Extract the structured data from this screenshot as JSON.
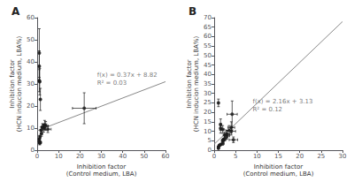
{
  "chart_data": [
    {
      "type": "scatter",
      "title": "A",
      "x": [
        1.0,
        1.0,
        1.2,
        1.5,
        1.3,
        2.0,
        1.8,
        2.5,
        3.0,
        3.5,
        4.0,
        5.0,
        1.0,
        1.0,
        1.2,
        1.5,
        1.0,
        22.0
      ],
      "y": [
        5.0,
        4.0,
        3.2,
        3.5,
        6.0,
        7.5,
        9.0,
        10.5,
        10.0,
        11.5,
        11.0,
        9.5,
        38.0,
        31.5,
        31.0,
        23.0,
        44.0,
        19.0
      ],
      "xerr": [
        0.4,
        0.3,
        0.3,
        0.4,
        0.3,
        0.5,
        0.4,
        0.6,
        0.8,
        1.0,
        1.2,
        1.5,
        0.3,
        0.3,
        0.3,
        0.3,
        0.2,
        5.5
      ],
      "yerr": [
        1.5,
        1.0,
        0.8,
        0.5,
        0.8,
        1.2,
        1.5,
        1.5,
        1.8,
        2.0,
        2.0,
        1.5,
        7.0,
        5.0,
        6.0,
        5.0,
        11.0,
        7.0
      ],
      "color": "#1a1a1a",
      "marker": "circle",
      "line": {
        "type": "line",
        "x": [
          0,
          60
        ],
        "y": [
          8.82,
          31.02
        ],
        "color": "#888888"
      },
      "annotations": [
        {
          "text": "f(x) = 0.37x + 8.82\nR² = 0.03",
          "x": 28,
          "y": 36
        }
      ],
      "xlabel": "Inhibition factor\n(Control medium, LBA)",
      "ylabel": "Inhibition factor\n(HCN inducion medium, LBA%)",
      "xlim": [
        0,
        60
      ],
      "ylim": [
        0,
        60
      ],
      "xticks": [
        0,
        10,
        20,
        30,
        40,
        50,
        60
      ],
      "yticks": [
        0,
        10,
        20,
        30,
        40,
        50,
        60
      ],
      "grid": false
    },
    {
      "type": "scatter",
      "title": "B",
      "x": [
        1.0,
        1.0,
        1.2,
        1.5,
        2.0,
        2.0,
        2.2,
        2.5,
        2.5,
        3.0,
        3.0,
        3.5,
        4.0,
        4.0,
        4.2,
        4.5,
        1.0,
        1.5,
        2.0,
        1.5
      ],
      "y": [
        1.0,
        1.8,
        2.5,
        3.0,
        3.5,
        5.0,
        5.5,
        6.0,
        8.0,
        7.5,
        8.5,
        10.5,
        10.0,
        12.0,
        19.0,
        5.5,
        25.0,
        11.5,
        11.0,
        13.5
      ],
      "xerr": [
        0.15,
        0.15,
        0.2,
        0.2,
        0.3,
        0.3,
        0.3,
        0.4,
        0.4,
        0.6,
        0.6,
        0.8,
        1.0,
        0.8,
        1.2,
        1.0,
        0.15,
        0.2,
        0.3,
        0.2
      ],
      "yerr": [
        0.3,
        0.3,
        0.5,
        0.5,
        0.8,
        0.8,
        0.8,
        1.0,
        1.5,
        1.5,
        1.8,
        2.5,
        2.0,
        3.0,
        7.0,
        1.5,
        2.0,
        2.5,
        2.0,
        3.0
      ],
      "color": "#1a1a1a",
      "marker": "circle",
      "line": {
        "type": "line",
        "x": [
          0,
          30
        ],
        "y": [
          3.13,
          67.93
        ],
        "color": "#888888"
      },
      "annotations": [
        {
          "text": "f(x) = 2.16x + 3.13\nR² = 0.12",
          "x": 9,
          "y": 28
        }
      ],
      "xlabel": "Inhibition factor\n(Control medium, LBA)",
      "ylabel": "Inhibition factor\n(HCN inducion medium, LBA%)",
      "xlim": [
        0,
        30
      ],
      "ylim": [
        0,
        70
      ],
      "xticks": [
        0,
        5,
        10,
        15,
        20,
        25,
        30
      ],
      "yticks": [
        0,
        5,
        10,
        15,
        20,
        25,
        30,
        35,
        40,
        45,
        50,
        55,
        60,
        65,
        70
      ],
      "grid": false
    }
  ]
}
